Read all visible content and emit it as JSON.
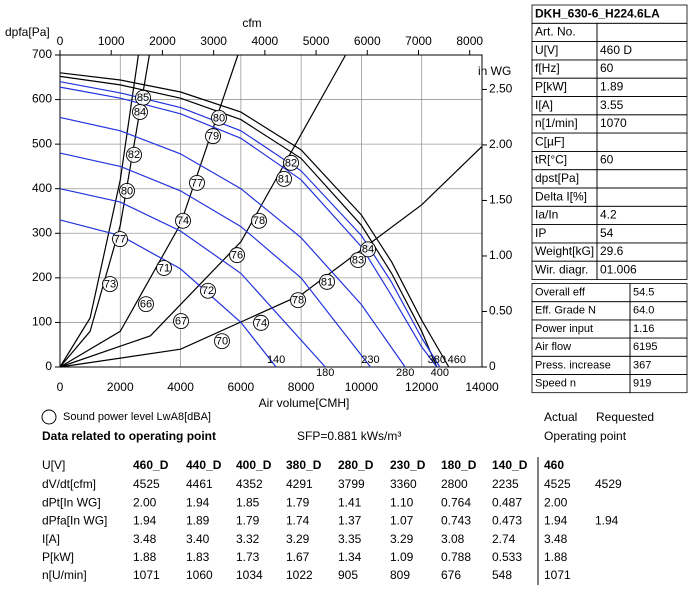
{
  "chart_data": {
    "type": "line",
    "ylabel": "dpfa[Pa]",
    "xlabel": "Air volume[CMH]",
    "x2label": "cfm",
    "y2label": "in WG",
    "xlim": [
      0,
      14000
    ],
    "xticks": [
      0,
      2000,
      4000,
      6000,
      8000,
      10000,
      12000,
      14000
    ],
    "ylim": [
      0,
      700
    ],
    "yticks": [
      0,
      100,
      200,
      300,
      400,
      500,
      600,
      700
    ],
    "x2lim": [
      0,
      8240
    ],
    "x2ticks": [
      0,
      1000,
      2000,
      3000,
      4000,
      5000,
      6000,
      7000,
      8000
    ],
    "y2lim": [
      0,
      2.81
    ],
    "y2ticks": [
      0,
      {
        "value": 0.5,
        "label": "0.50"
      },
      {
        "value": 1,
        "label": "1.00"
      },
      {
        "value": 1.5,
        "label": "1.50"
      },
      {
        "value": 2,
        "label": "2.00"
      },
      {
        "value": 2.5,
        "label": "2.50"
      }
    ],
    "grid": true,
    "series": [
      {
        "name": "460",
        "color": "#000000",
        "x": [
          0,
          2000,
          4000,
          6000,
          8000,
          10000,
          11000,
          12000,
          12900
        ],
        "values": [
          660,
          644,
          617,
          572,
          487,
          341,
          236,
          105,
          0
        ]
      },
      {
        "color": "#000000",
        "x": [
          0,
          2000,
          4000,
          6000,
          8000,
          10000,
          11000,
          12000,
          12500
        ],
        "values": [
          652,
          633,
          603,
          555,
          468,
          318,
          210,
          80,
          0
        ]
      },
      {
        "name": "400",
        "color": "#2233dd",
        "x": [
          0,
          2000,
          4000,
          6000,
          8000,
          10000,
          11000,
          12000,
          12600
        ],
        "values": [
          640,
          615,
          582,
          530,
          440,
          295,
          190,
          65,
          0
        ]
      },
      {
        "name": "380",
        "color": "#2233dd",
        "x": [
          0,
          2000,
          4000,
          6000,
          8000,
          10000,
          11000,
          12000,
          12500
        ],
        "values": [
          628,
          603,
          568,
          513,
          420,
          270,
          160,
          45,
          0
        ]
      },
      {
        "name": "280",
        "color": "#2233dd",
        "x": [
          0,
          2000,
          4000,
          6000,
          8000,
          10000,
          11450
        ],
        "values": [
          560,
          530,
          478,
          400,
          290,
          140,
          0
        ]
      },
      {
        "name": "230",
        "color": "#2233dd",
        "x": [
          0,
          2000,
          4000,
          6000,
          8000,
          10300
        ],
        "values": [
          480,
          450,
          395,
          315,
          200,
          0
        ]
      },
      {
        "name": "180",
        "color": "#2233dd",
        "x": [
          0,
          2000,
          4000,
          6000,
          8800
        ],
        "values": [
          400,
          370,
          305,
          210,
          0
        ]
      },
      {
        "name": "140",
        "color": "#2233dd",
        "x": [
          0,
          2000,
          4000,
          6000,
          7170
        ],
        "values": [
          330,
          295,
          220,
          100,
          0
        ]
      }
    ],
    "system_curves": [
      {
        "color": "#000000",
        "x": [
          0,
          1000,
          2000,
          2600
        ],
        "values": [
          0,
          110,
          420,
          700
        ]
      },
      {
        "color": "#000000",
        "x": [
          0,
          1000,
          2000,
          2965
        ],
        "values": [
          0,
          80,
          318,
          700
        ]
      },
      {
        "color": "#000000",
        "x": [
          0,
          2000,
          4000,
          5903
        ],
        "values": [
          0,
          80,
          321,
          700
        ]
      },
      {
        "color": "#000000",
        "x": [
          0,
          3000,
          6000,
          9475
        ],
        "values": [
          0,
          70,
          281,
          700
        ]
      },
      {
        "color": "#000000",
        "x": [
          0,
          4000,
          8000,
          12000,
          14000
        ],
        "values": [
          0,
          40,
          162,
          364,
          495
        ]
      }
    ],
    "sound_label": "Sound power level LwA8[dBA]",
    "sound_levels": [
      {
        "x": 2754,
        "y": 604,
        "value": 85
      },
      {
        "x": 2654,
        "y": 572,
        "value": 84
      },
      {
        "x": 5275,
        "y": 559,
        "value": 80
      },
      {
        "x": 5076,
        "y": 518,
        "value": 79
      },
      {
        "x": 7664,
        "y": 458,
        "value": 82
      },
      {
        "x": 7432,
        "y": 422,
        "value": 81
      },
      {
        "x": 10219,
        "y": 264,
        "value": 84
      },
      {
        "x": 9887,
        "y": 240,
        "value": 83
      },
      {
        "x": 2455,
        "y": 476,
        "value": 82
      },
      {
        "x": 2223,
        "y": 395,
        "value": 80
      },
      {
        "x": 1991,
        "y": 287,
        "value": 77
      },
      {
        "x": 1659,
        "y": 186,
        "value": 73
      },
      {
        "x": 4545,
        "y": 413,
        "value": 77
      },
      {
        "x": 4081,
        "y": 328,
        "value": 74
      },
      {
        "x": 3451,
        "y": 222,
        "value": 71
      },
      {
        "x": 2853,
        "y": 141,
        "value": 66
      },
      {
        "x": 6602,
        "y": 328,
        "value": 78
      },
      {
        "x": 5873,
        "y": 251,
        "value": 76
      },
      {
        "x": 4910,
        "y": 171,
        "value": 72
      },
      {
        "x": 4015,
        "y": 103,
        "value": 67
      },
      {
        "x": 5375,
        "y": 58,
        "value": 70
      },
      {
        "x": 7896,
        "y": 150,
        "value": 78
      },
      {
        "x": 8858,
        "y": 191,
        "value": 81
      },
      {
        "x": 6669,
        "y": 99,
        "value": 74
      }
    ]
  },
  "spec_table": {
    "title": "DKH_630-6_H224.6LA",
    "rows": [
      [
        "Art. No."
      ],
      [
        "U[V]",
        "460 D"
      ],
      [
        "f[Hz]",
        "60"
      ],
      [
        "P[kW]",
        "1.89"
      ],
      [
        "I[A]",
        "3.55"
      ],
      [
        "n[1/min]",
        "1070"
      ],
      [
        "C[µF]"
      ],
      [
        "tR[°C]",
        "60"
      ],
      [
        "dpst[Pa]"
      ],
      [
        "Delta I[%]"
      ],
      [
        "Ia/In",
        "4.2"
      ],
      [
        "IP",
        "54"
      ],
      [
        "Weight[kG]",
        "29.6"
      ],
      [
        "Wir. diagr.",
        "01.006"
      ]
    ]
  },
  "efficiency_table": {
    "rows": [
      [
        "Overall eff",
        "54.5"
      ],
      [
        "Eff. Grade N",
        "64.0"
      ],
      [
        "Power input",
        "1.16"
      ],
      [
        "Air flow",
        "6195"
      ],
      [
        "Press. increase",
        "367"
      ],
      [
        "Speed n",
        "919"
      ]
    ]
  },
  "operating_point": {
    "heading": "Data related to operating point",
    "sfp": "SFP=0.881 kWs/m³",
    "actual": "Actual",
    "requested": "Requested",
    "operating_point": "Operating point",
    "header": [
      "U[V]",
      "460_D",
      "440_D",
      "400_D",
      "380_D",
      "280_D",
      "230_D",
      "180_D",
      "140_D",
      "460"
    ],
    "rows": [
      [
        "dV/dt[cfm]",
        "4525",
        "4461",
        "4352",
        "4291",
        "3799",
        "3360",
        "2800",
        "2235",
        "4525",
        "4529"
      ],
      [
        "dPt[In WG]",
        "2.00",
        "1.94",
        "1.85",
        "1.79",
        "1.41",
        "1.10",
        "0.764",
        "0.487",
        "2.00"
      ],
      [
        "dPfa[In WG]",
        "1.94",
        "1.89",
        "1.79",
        "1.74",
        "1.37",
        "1.07",
        "0.743",
        "0.473",
        "1.94",
        "1.94"
      ],
      [
        "I[A]",
        "3.48",
        "3.40",
        "3.32",
        "3.29",
        "3.35",
        "3.29",
        "3.08",
        "2.74",
        "3.48"
      ],
      [
        "P[kW]",
        "1.88",
        "1.83",
        "1.73",
        "1.67",
        "1.34",
        "1.09",
        "0.788",
        "0.533",
        "1.88"
      ],
      [
        "n[U/min]",
        "1071",
        "1060",
        "1034",
        "1022",
        "905",
        "809",
        "676",
        "548",
        "1071"
      ]
    ]
  }
}
